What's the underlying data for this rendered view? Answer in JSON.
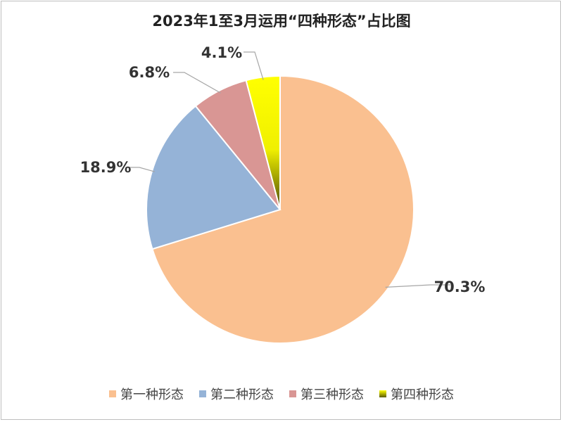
{
  "chart_data": {
    "type": "pie",
    "title": "2023年1至3月运用“四种形态”占比图",
    "slices": [
      {
        "label": "第一种形态",
        "value": 70.3,
        "display": "70.3%",
        "color": "#FAC090"
      },
      {
        "label": "第二种形态",
        "value": 18.9,
        "display": "18.9%",
        "color": "#95B3D7"
      },
      {
        "label": "第三种形态",
        "value": 6.8,
        "display": "6.8%",
        "color": "#D99694"
      },
      {
        "label": "第四种形态",
        "value": 4.1,
        "display": "4.1%",
        "color": "#FFFF00"
      }
    ],
    "legend_position": "bottom"
  }
}
